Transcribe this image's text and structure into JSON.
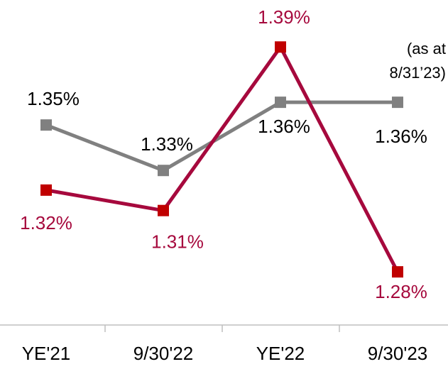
{
  "chart_data": {
    "type": "line",
    "categories": [
      "YE'21",
      "9/30'22",
      "YE'22",
      "9/30'23"
    ],
    "series": [
      {
        "color": "#808080",
        "values": [
          1.35,
          1.33,
          1.36,
          1.36
        ],
        "value_labels": [
          "1.35%",
          "1.33%",
          "1.36%",
          "1.36%"
        ],
        "axis": "y2",
        "label_color": "#000000"
      },
      {
        "color": "#a6093d",
        "marker_color": "#c00000",
        "values": [
          1.32,
          1.31,
          1.39,
          1.28
        ],
        "value_labels": [
          "1.32%",
          "1.31%",
          "1.39%",
          "1.28%"
        ],
        "label_color": "#a6093d"
      }
    ],
    "ylim": [
      1.254,
      1.413
    ],
    "y2lim": [
      1.262,
      1.405
    ],
    "annotation": [
      "(as at",
      "8/31’23)"
    ]
  }
}
